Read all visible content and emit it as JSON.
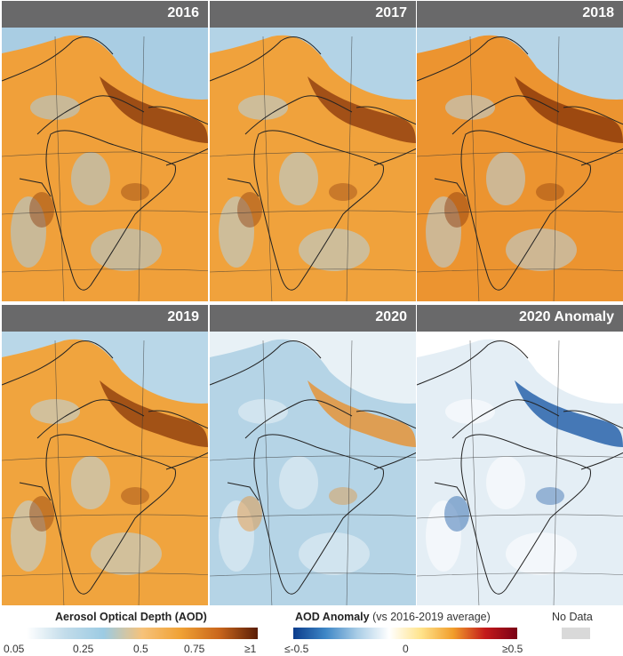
{
  "panels": [
    {
      "title": "2016",
      "colors": {
        "base": "#f0a03a",
        "light": "#a9cde3",
        "dark": "#8a3a0c"
      }
    },
    {
      "title": "2017",
      "colors": {
        "base": "#f0a23c",
        "light": "#b3d3e6",
        "dark": "#8e3c0e"
      }
    },
    {
      "title": "2018",
      "colors": {
        "base": "#ec9430",
        "light": "#b6d4e6",
        "dark": "#8a3609"
      }
    },
    {
      "title": "2019",
      "colors": {
        "base": "#f0a43e",
        "light": "#b9d7e8",
        "dark": "#8f3d0c"
      }
    },
    {
      "title": "2020",
      "colors": {
        "base": "#b5d4e6",
        "light": "#e8f1f6",
        "dark": "#e8902e"
      }
    },
    {
      "title": "2020 Anomaly",
      "colors": {
        "base": "#e4eef5",
        "light": "#ffffff",
        "dark": "#1d5aa6"
      }
    }
  ],
  "legend": {
    "aod": {
      "title": "Aerosol Optical Depth (AOD)",
      "ticks": [
        "0.05",
        "0.25",
        "0.5",
        "0.75",
        "≥1"
      ],
      "gradient": [
        "#ffffff",
        "#c2dcea",
        "#9ccbe3",
        "#f6c27a",
        "#f0a134",
        "#c9661c",
        "#5a1d06"
      ]
    },
    "anomaly": {
      "title": "AOD Anomaly",
      "subtitle": "(vs 2016-2019 average)",
      "ticks": [
        "≤-0.5",
        "0",
        "≥0.5"
      ],
      "gradient": [
        "#0b3c8c",
        "#3d86c6",
        "#a9cde6",
        "#ffffff",
        "#ffe38a",
        "#f19d2b",
        "#c41a1a",
        "#7a0016"
      ]
    },
    "no_data": {
      "label": "No Data",
      "color": "#d9d9d9"
    }
  }
}
